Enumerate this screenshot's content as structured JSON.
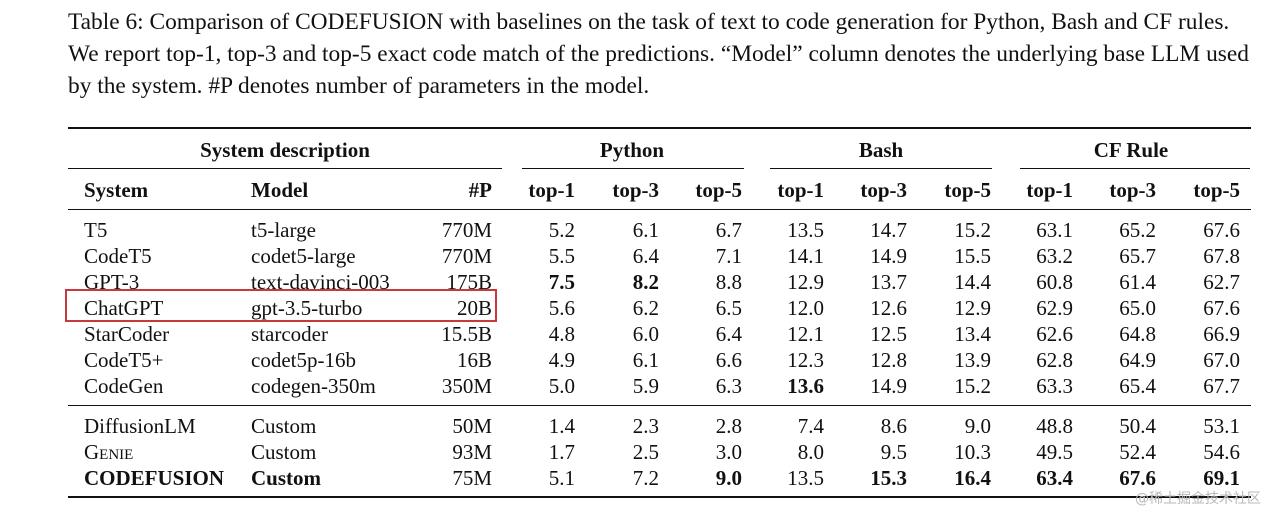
{
  "caption": {
    "label": "Table 6:",
    "pre": "Comparison of",
    "system_name": "CODEFUSION",
    "post": "with baselines on the task of text to code generation for Python, Bash and CF rules. We report top-1, top-3 and top-5 exact code match of the predictions. “Model” column denotes the underlying base LLM used by the system. #P denotes number of parameters in the model."
  },
  "headers": {
    "groups": [
      "System description",
      "Python",
      "Bash",
      "CF Rule"
    ],
    "columns": [
      "System",
      "Model",
      "#P",
      "top-1",
      "top-3",
      "top-5",
      "top-1",
      "top-3",
      "top-5",
      "top-1",
      "top-3",
      "top-5"
    ]
  },
  "rows": [
    {
      "system": "T5",
      "model": "t5-large",
      "params": "770M",
      "values": [
        "5.2",
        "6.1",
        "6.7",
        "13.5",
        "14.7",
        "15.2",
        "63.1",
        "65.2",
        "67.6"
      ],
      "bold": []
    },
    {
      "system": "CodeT5",
      "model": "codet5-large",
      "params": "770M",
      "values": [
        "5.5",
        "6.4",
        "7.1",
        "14.1",
        "14.9",
        "15.5",
        "63.2",
        "65.7",
        "67.8"
      ],
      "bold": []
    },
    {
      "system": "GPT-3",
      "model": "text-davinci-003",
      "params": "175B",
      "values": [
        "7.5",
        "8.2",
        "8.8",
        "12.9",
        "13.7",
        "14.4",
        "60.8",
        "61.4",
        "62.7"
      ],
      "bold": [
        0,
        1
      ]
    },
    {
      "system": "ChatGPT",
      "model": "gpt-3.5-turbo",
      "params": "20B",
      "values": [
        "5.6",
        "6.2",
        "6.5",
        "12.0",
        "12.6",
        "12.9",
        "62.9",
        "65.0",
        "67.6"
      ],
      "bold": []
    },
    {
      "system": "StarCoder",
      "model": "starcoder",
      "params": "15.5B",
      "values": [
        "4.8",
        "6.0",
        "6.4",
        "12.1",
        "12.5",
        "13.4",
        "62.6",
        "64.8",
        "66.9"
      ],
      "bold": []
    },
    {
      "system": "CodeT5+",
      "model": "codet5p-16b",
      "params": "16B",
      "values": [
        "4.9",
        "6.1",
        "6.6",
        "12.3",
        "12.8",
        "13.9",
        "62.8",
        "64.9",
        "67.0"
      ],
      "bold": []
    },
    {
      "system": "CodeGen",
      "model": "codegen-350m",
      "params": "350M",
      "values": [
        "5.0",
        "5.9",
        "6.3",
        "13.6",
        "14.9",
        "15.2",
        "63.3",
        "65.4",
        "67.7"
      ],
      "bold": [
        3
      ]
    },
    {
      "system": "DiffusionLM",
      "model": "Custom",
      "params": "50M",
      "values": [
        "1.4",
        "2.3",
        "2.8",
        "7.4",
        "8.6",
        "9.0",
        "48.8",
        "50.4",
        "53.1"
      ],
      "bold": []
    },
    {
      "system": "Genie",
      "model": "Custom",
      "params": "93M",
      "values": [
        "1.7",
        "2.5",
        "3.0",
        "8.0",
        "9.5",
        "10.3",
        "49.5",
        "52.4",
        "54.6"
      ],
      "bold": [],
      "smallcaps": true
    },
    {
      "system": "CODEFUSION",
      "model": "Custom",
      "params": "75M",
      "values": [
        "5.1",
        "7.2",
        "9.0",
        "13.5",
        "15.3",
        "16.4",
        "63.4",
        "67.6",
        "69.1"
      ],
      "bold": [
        2,
        4,
        5,
        6,
        7,
        8
      ],
      "bold_row": true,
      "smallcaps": true
    }
  ],
  "watermark": "@稀土掘金技术社区"
}
